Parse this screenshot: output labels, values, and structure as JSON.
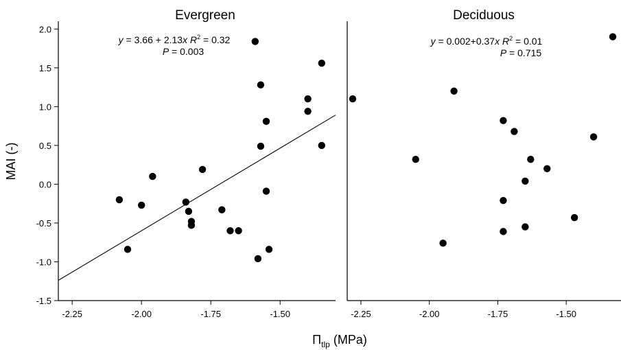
{
  "chart_data": [
    {
      "type": "scatter",
      "title": "Evergreen",
      "xlim": [
        -2.3,
        -1.3
      ],
      "ylim": [
        -1.5,
        2.1
      ],
      "x_ticks": [
        -2.25,
        -2.0,
        -1.75,
        -1.5
      ],
      "x_tick_labels": [
        "-2.25",
        "-2.00",
        "-1.75",
        "-1.50"
      ],
      "y_ticks": [
        -1.5,
        -1.0,
        -0.5,
        0.0,
        0.5,
        1.0,
        1.5,
        2.0
      ],
      "y_tick_labels": [
        "-1.5",
        "-1.0",
        "-0.5",
        "0.0",
        "0.5",
        "1.0",
        "1.5",
        "2.0"
      ],
      "ylabel": "MAI (-)",
      "annotation_line1": "y = 3.66 + 2.13x R2 = 0.32",
      "annotation_line2": "P = 0.003",
      "regression": {
        "intercept": 3.66,
        "slope": 2.13
      },
      "x": [
        -2.08,
        -2.05,
        -2.0,
        -1.96,
        -1.84,
        -1.83,
        -1.82,
        -1.82,
        -1.78,
        -1.71,
        -1.68,
        -1.65,
        -1.59,
        -1.58,
        -1.57,
        -1.57,
        -1.55,
        -1.55,
        -1.54,
        -1.4,
        -1.4,
        -1.35,
        -1.35
      ],
      "y": [
        -0.2,
        -0.84,
        -0.27,
        0.1,
        -0.23,
        -0.35,
        -0.48,
        -0.53,
        0.19,
        -0.33,
        -0.6,
        -0.6,
        1.84,
        -0.96,
        0.49,
        1.28,
        0.81,
        -0.09,
        -0.84,
        1.1,
        0.94,
        1.56,
        0.5
      ]
    },
    {
      "type": "scatter",
      "title": "Deciduous",
      "xlim": [
        -2.3,
        -1.3
      ],
      "ylim": [
        -1.5,
        2.1
      ],
      "x_ticks": [
        -2.25,
        -2.0,
        -1.75,
        -1.5
      ],
      "x_tick_labels": [
        "-2.25",
        "-2.00",
        "-1.75",
        "-1.50"
      ],
      "annotation_line1": "y = 0.002+0.37x R2 = 0.01",
      "annotation_line2": "P = 0.715",
      "x": [
        -2.28,
        -2.05,
        -1.95,
        -1.91,
        -1.73,
        -1.73,
        -1.73,
        -1.69,
        -1.65,
        -1.65,
        -1.63,
        -1.57,
        -1.47,
        -1.4,
        -1.33
      ],
      "y": [
        1.1,
        0.32,
        -0.76,
        1.2,
        0.82,
        -0.21,
        -0.61,
        0.68,
        0.04,
        -0.55,
        0.32,
        0.2,
        -0.43,
        0.61,
        1.9
      ]
    }
  ],
  "shared_xlabel": "Π_tlp (MPa)"
}
